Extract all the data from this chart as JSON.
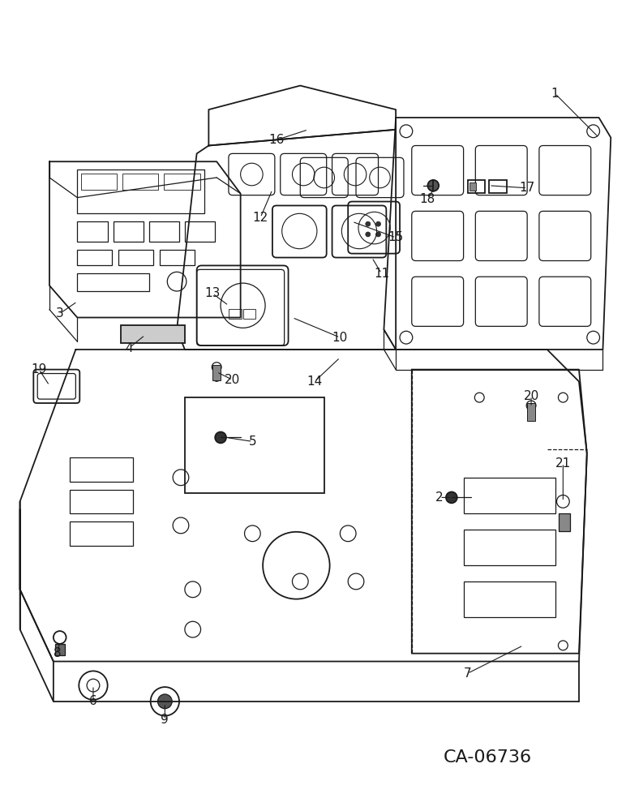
{
  "bg_color": "#ffffff",
  "lc": "#1a1a1a",
  "catalog_id": "CA-06736",
  "figsize": [
    7.72,
    10.0
  ],
  "dpi": 100
}
